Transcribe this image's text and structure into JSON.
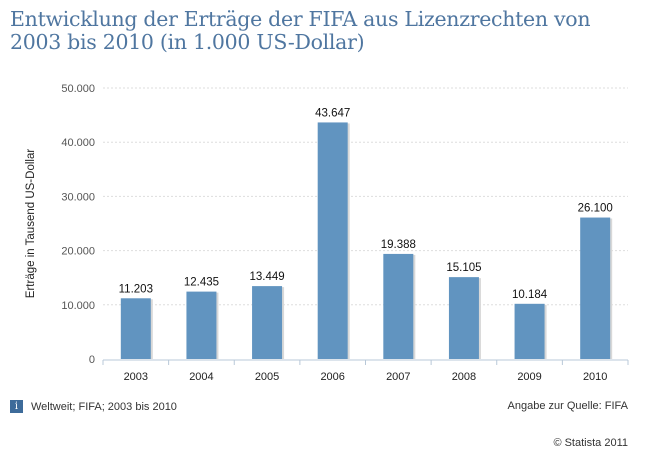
{
  "title": "Entwicklung der Erträge der FIFA aus Lizenzrechten von 2003 bis 2010 (in 1.000 US-Dollar)",
  "chart_data": {
    "type": "bar",
    "title": "Entwicklung der Erträge der FIFA aus Lizenzrechten von 2003 bis 2010 (in 1.000 US-Dollar)",
    "categories": [
      "2003",
      "2004",
      "2005",
      "2006",
      "2007",
      "2008",
      "2009",
      "2010"
    ],
    "values": [
      11203,
      12435,
      13449,
      43647,
      19388,
      15105,
      10184,
      26100
    ],
    "data_labels": [
      "11.203",
      "12.435",
      "13.449",
      "43.647",
      "19.388",
      "15.105",
      "10.184",
      "26.100"
    ],
    "xlabel": "",
    "ylabel": "Erträge in Tausend US-Dollar",
    "ylim": [
      0,
      50000
    ],
    "yticks": [
      0,
      10000,
      20000,
      30000,
      40000,
      50000
    ],
    "ytick_labels": [
      "0",
      "10.000",
      "20.000",
      "30.000",
      "40.000",
      "50.000"
    ],
    "grid": true,
    "bar_color": "#6194c0"
  },
  "footer": {
    "info": "Weltweit; FIFA; 2003 bis 2010",
    "source": "Angabe zur Quelle: FIFA",
    "copyright": "© Statista 2011",
    "info_icon": "i"
  }
}
